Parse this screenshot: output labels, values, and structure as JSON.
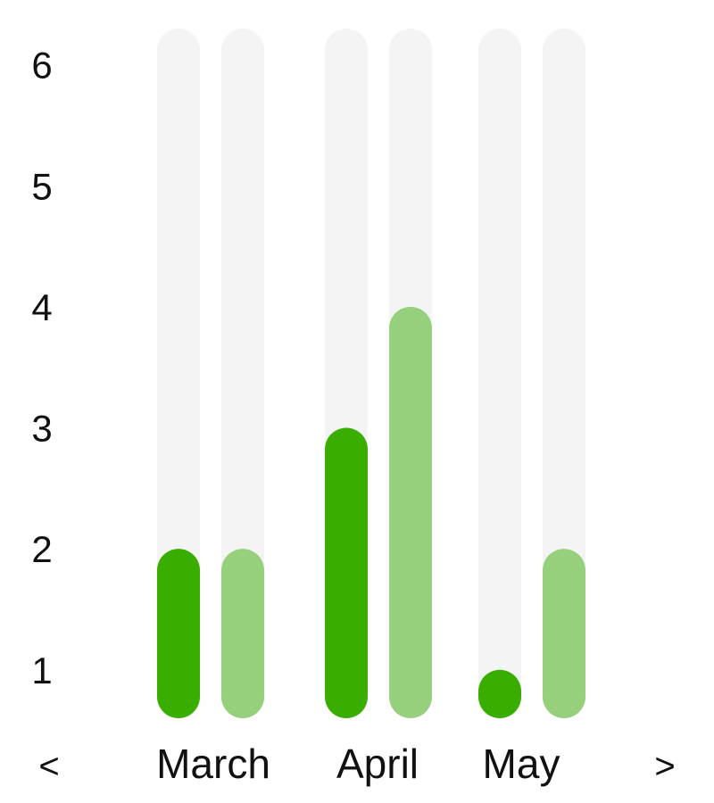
{
  "chart_data": {
    "type": "bar",
    "categories": [
      "March",
      "April",
      "May"
    ],
    "series": [
      {
        "values": [
          2,
          3,
          1
        ],
        "color": "#3aae00"
      },
      {
        "values": [
          2,
          4,
          2
        ],
        "color": "#96d07c"
      }
    ],
    "yticks": [
      "1",
      "2",
      "3",
      "4",
      "5",
      "6"
    ],
    "ylim": [
      0.6,
      6.3
    ],
    "track_color": "#f4f4f4",
    "grid": false,
    "legend": "none"
  },
  "nav": {
    "prev_label": "<",
    "next_label": ">"
  }
}
